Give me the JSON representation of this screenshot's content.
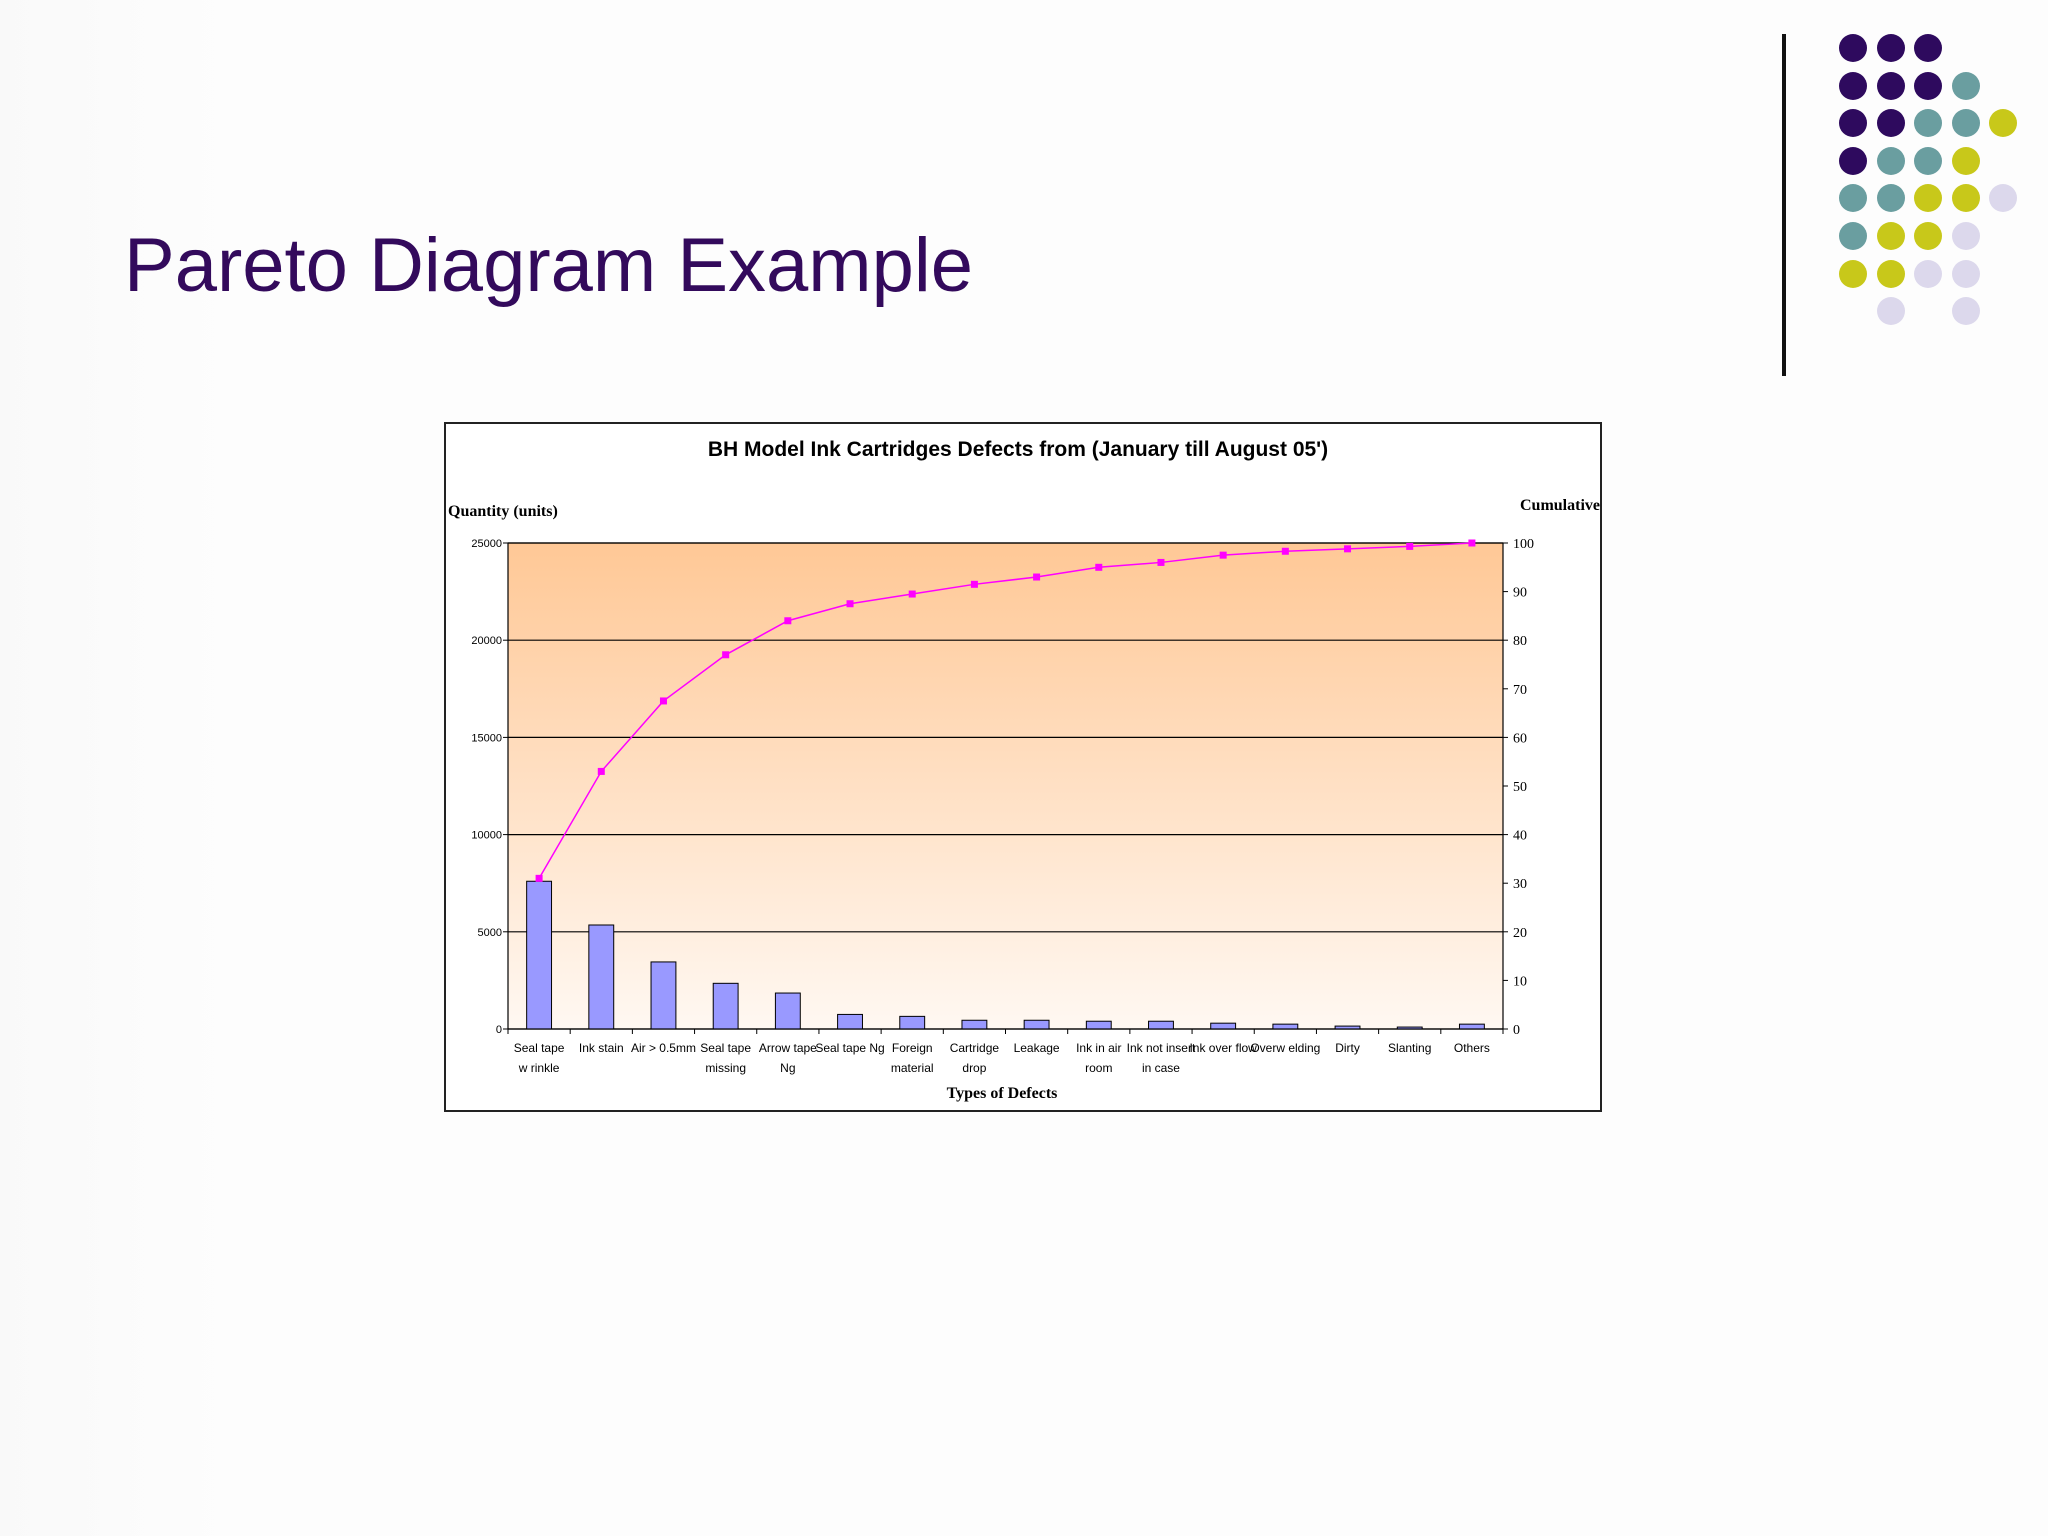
{
  "slide": {
    "title": "Pareto Diagram Example"
  },
  "decor": {
    "colors": {
      "purple": "#2e0a5e",
      "teal": "#6a9ea0",
      "yellow": "#c8c81a",
      "lavender": "#dcd8ec",
      "title": "#330a5c"
    },
    "dot_rows": [
      [
        "purple",
        "purple",
        "purple",
        null,
        null
      ],
      [
        "purple",
        "purple",
        "purple",
        "teal",
        null
      ],
      [
        "purple",
        "purple",
        "teal",
        "teal",
        "yellow"
      ],
      [
        "purple",
        "teal",
        "teal",
        "yellow",
        null
      ],
      [
        "teal",
        "teal",
        "yellow",
        "yellow",
        "lavender"
      ],
      [
        "teal",
        "yellow",
        "yellow",
        "lavender",
        null
      ],
      [
        "yellow",
        "yellow",
        "lavender",
        "lavender",
        null
      ],
      [
        null,
        "lavender",
        null,
        "lavender",
        null
      ]
    ]
  },
  "chart_data": {
    "type": "bar",
    "title": "BH Model Ink Cartridges Defects from (January till August 05')",
    "xlabel": "Types of Defects",
    "ylabel": "Quantity (units)",
    "y2label": "Cumulative %",
    "ylim": [
      0,
      25000
    ],
    "y2lim": [
      0,
      100
    ],
    "yticks": [
      "0",
      "5000",
      "10000",
      "15000",
      "20000",
      "25000"
    ],
    "y2ticks": [
      "0",
      "10",
      "20",
      "30",
      "40",
      "50",
      "60",
      "70",
      "80",
      "90",
      "100"
    ],
    "grid": true,
    "categories": [
      [
        "Seal tape",
        "w rinkle"
      ],
      [
        "Ink stain"
      ],
      [
        "Air > 0.5mm"
      ],
      [
        "Seal tape",
        "missing"
      ],
      [
        "Arrow  tape",
        "Ng"
      ],
      [
        "Seal tape Ng"
      ],
      [
        "Foreign",
        "material"
      ],
      [
        "Cartridge",
        "drop"
      ],
      [
        "Leakage"
      ],
      [
        "Ink in air",
        "room"
      ],
      [
        "Ink not insert",
        "in case"
      ],
      [
        "Ink over flow"
      ],
      [
        "Overw elding"
      ],
      [
        "Dirty"
      ],
      [
        "Slanting"
      ],
      [
        "Others"
      ]
    ],
    "series": [
      {
        "kind": "bar",
        "axis": "left",
        "values": [
          7600,
          5350,
          3450,
          2350,
          1850,
          750,
          650,
          450,
          450,
          400,
          400,
          300,
          250,
          150,
          100,
          250
        ]
      },
      {
        "kind": "line",
        "axis": "right",
        "values": [
          31,
          53,
          67.5,
          77,
          84,
          87.5,
          89.5,
          91.5,
          93,
          95,
          96,
          97.5,
          98.3,
          98.8,
          99.3,
          100
        ]
      }
    ],
    "colors": {
      "bar": "#9999ff",
      "line": "#ff00ff",
      "plot_top": "#ffc896",
      "plot_bottom": "#fff8f2"
    }
  }
}
